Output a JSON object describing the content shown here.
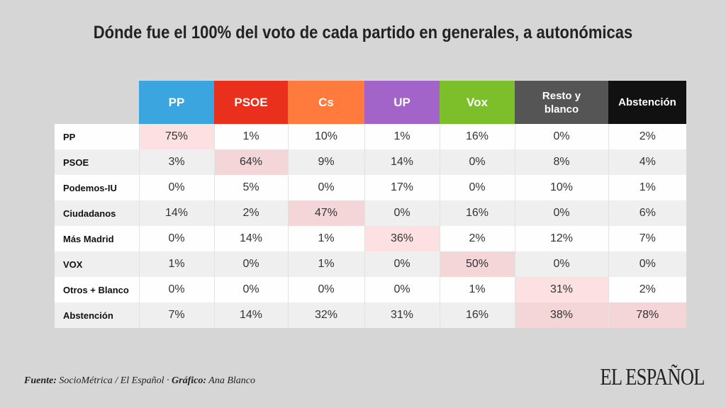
{
  "chart_data": {
    "type": "table",
    "title": "Dónde fue el 100% del voto de cada partido en generales, a autonómicas",
    "columns": [
      {
        "label": "PP",
        "color": "#3ba5e0"
      },
      {
        "label": "PSOE",
        "color": "#e8301c"
      },
      {
        "label": "Cs",
        "color": "#ff7a3d"
      },
      {
        "label": "UP",
        "color": "#a264c8"
      },
      {
        "label": "Vox",
        "color": "#7dbf2a"
      },
      {
        "label": "Resto y blanco",
        "color": "#555555"
      },
      {
        "label": "Abstención",
        "color": "#111111"
      }
    ],
    "rows": [
      {
        "label": "PP",
        "values": [
          "75%",
          "1%",
          "10%",
          "1%",
          "16%",
          "0%",
          "2%"
        ],
        "highlight": [
          0
        ]
      },
      {
        "label": "PSOE",
        "values": [
          "3%",
          "64%",
          "9%",
          "14%",
          "0%",
          "8%",
          "4%"
        ],
        "highlight": [
          1
        ]
      },
      {
        "label": "Podemos-IU",
        "values": [
          "0%",
          "5%",
          "0%",
          "17%",
          "0%",
          "10%",
          "1%"
        ],
        "highlight": []
      },
      {
        "label": "Ciudadanos",
        "values": [
          "14%",
          "2%",
          "47%",
          "0%",
          "16%",
          "0%",
          "6%"
        ],
        "highlight": [
          2
        ]
      },
      {
        "label": "Más Madrid",
        "values": [
          "0%",
          "14%",
          "1%",
          "36%",
          "2%",
          "12%",
          "7%"
        ],
        "highlight": [
          3
        ]
      },
      {
        "label": "VOX",
        "values": [
          "1%",
          "0%",
          "1%",
          "0%",
          "50%",
          "0%",
          "0%"
        ],
        "highlight": [
          4
        ]
      },
      {
        "label": "Otros + Blanco",
        "values": [
          "0%",
          "0%",
          "0%",
          "0%",
          "1%",
          "31%",
          "2%"
        ],
        "highlight": [
          5
        ]
      },
      {
        "label": "Abstención",
        "values": [
          "7%",
          "14%",
          "32%",
          "31%",
          "16%",
          "38%",
          "78%"
        ],
        "highlight": [
          5,
          6
        ]
      }
    ],
    "highlight_color": "#fde0e1"
  },
  "footer": {
    "source_label": "Fuente:",
    "source": " SocioMétrica / El Español · ",
    "credit_label": "Gráfico:",
    "credit": " Ana Blanco"
  },
  "logo": "EL ESPAÑOL"
}
